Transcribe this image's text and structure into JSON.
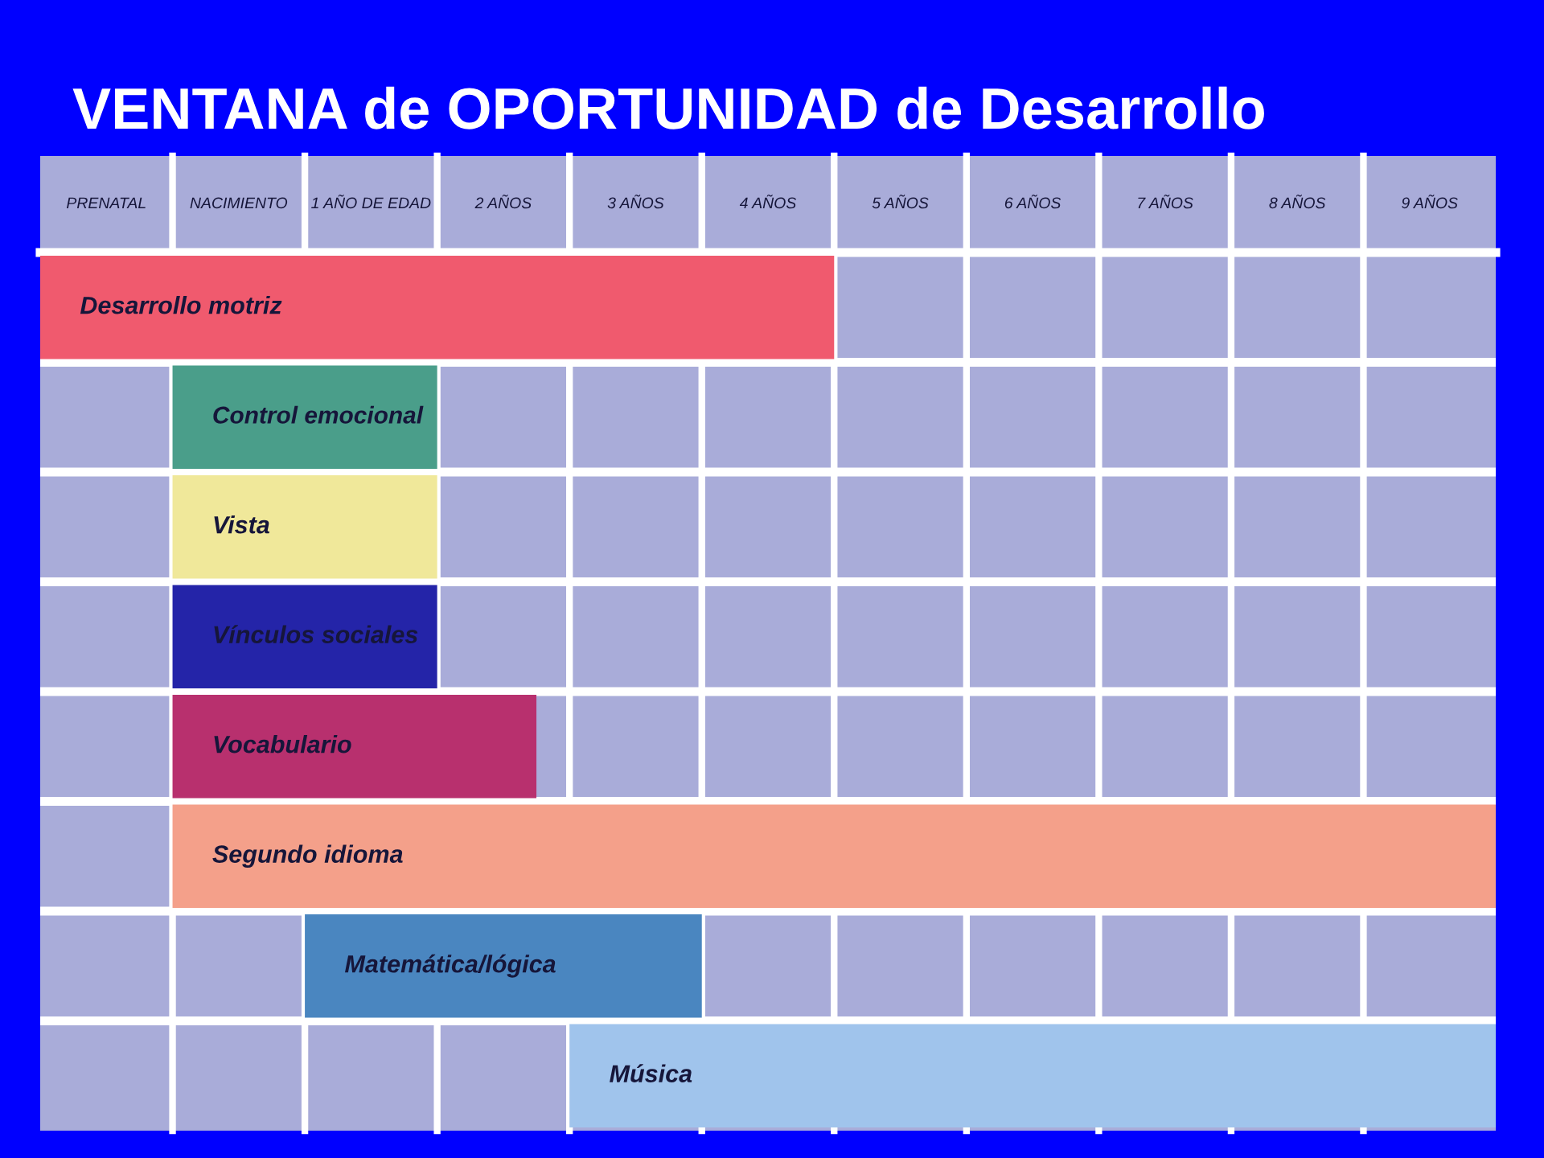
{
  "chart_data": {
    "type": "bar",
    "orientation": "horizontal",
    "title": "VENTANA de OPORTUNIDAD de Desarrollo",
    "categories": [
      "Desarrollo motriz",
      "Control emocional",
      "Vista",
      "Vínculos sociales",
      "Vocabulario",
      "Segundo idioma",
      "Matemática/lógica",
      "Música"
    ],
    "base": [
      -1.5,
      -0.5,
      -0.5,
      -0.5,
      -0.5,
      -0.5,
      0.5,
      2.5
    ],
    "values": [
      6,
      2,
      2,
      2,
      2.75,
      10,
      3,
      7
    ],
    "colors": [
      "#f05a6e",
      "#4a9e8a",
      "#f0e89a",
      "#2424a8",
      "#b8306e",
      "#f4a08a",
      "#4a86c0",
      "#a0c4ec"
    ],
    "xlim": [
      -1.5,
      9.5
    ],
    "xticks": [
      {
        "value": -1,
        "label": "PRENATAL"
      },
      {
        "value": 0,
        "label": "NACIMIENTO"
      },
      {
        "value": 1,
        "label": "1 AÑO DE EDAD"
      },
      {
        "value": 2,
        "label": "2 AÑOS"
      },
      {
        "value": 3,
        "label": "3 AÑOS"
      },
      {
        "value": 4,
        "label": "4 AÑOS"
      },
      {
        "value": 5,
        "label": "5 AÑOS"
      },
      {
        "value": 6,
        "label": "6 AÑOS"
      },
      {
        "value": 7,
        "label": "7 AÑOS"
      },
      {
        "value": 8,
        "label": "8 AÑOS"
      },
      {
        "value": 9,
        "label": "9 AÑOS"
      }
    ],
    "tick_labels": "x",
    "grid": true
  }
}
